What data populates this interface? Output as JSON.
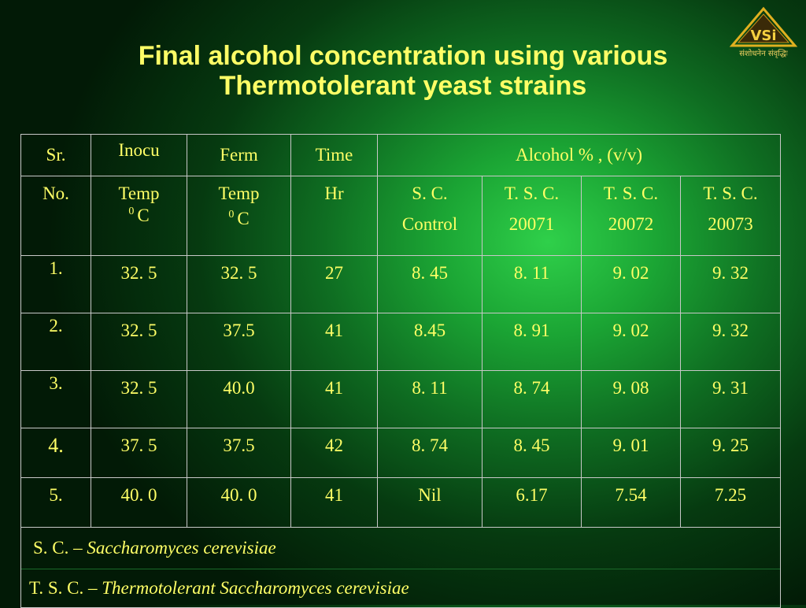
{
  "title": {
    "line1": "Final alcohol concentration using various",
    "line2": "Thermotolerant yeast strains"
  },
  "logo": {
    "text": "VSi",
    "tagline": "संशोधनेन संवृद्धिः"
  },
  "table": {
    "header": {
      "sr": "Sr.",
      "inocu": "Inocu",
      "ferm": "Ferm",
      "time": "Time",
      "alcohol": "Alcohol % , (v/v)",
      "no": "No.",
      "inocu_temp": "Temp",
      "inocu_sup": "0",
      "inocu_unit": "C",
      "ferm_temp": "Temp",
      "ferm_sup": "0",
      "ferm_unit": "C",
      "hr": "Hr",
      "sc_line1": "S. C.",
      "sc_line2": "Control",
      "tsc1_line1": "T. S. C.",
      "tsc1_line2": "20071",
      "tsc2_line1": "T. S. C.",
      "tsc2_line2": "20072",
      "tsc3_line1": "T. S. C.",
      "tsc3_line2": "20073"
    },
    "rows": [
      [
        "1.",
        "32. 5",
        "32. 5",
        "27",
        "8. 45",
        "8. 11",
        "9. 02",
        "9. 32"
      ],
      [
        "2.",
        "32. 5",
        "37.5",
        "41",
        "8.45",
        "8. 91",
        "9. 02",
        "9. 32"
      ],
      [
        "3.",
        "32. 5",
        "40.0",
        "41",
        "8. 11",
        "8. 74",
        "9. 08",
        "9. 31"
      ],
      [
        "4.",
        "37. 5",
        "37.5",
        "42",
        "8. 74",
        "8. 45",
        "9. 01",
        "9. 25"
      ],
      [
        "5.",
        "40. 0",
        "40. 0",
        "41",
        "Nil",
        "6.17",
        "7.54",
        "7.25"
      ]
    ],
    "legend": {
      "sc_abbr": "S. C. –",
      "sc_name": "Saccharomyces cerevisiae",
      "tsc_abbr": "T. S. C. –",
      "tsc_name": "Thermotolerant Saccharomyces cerevisiae"
    }
  }
}
